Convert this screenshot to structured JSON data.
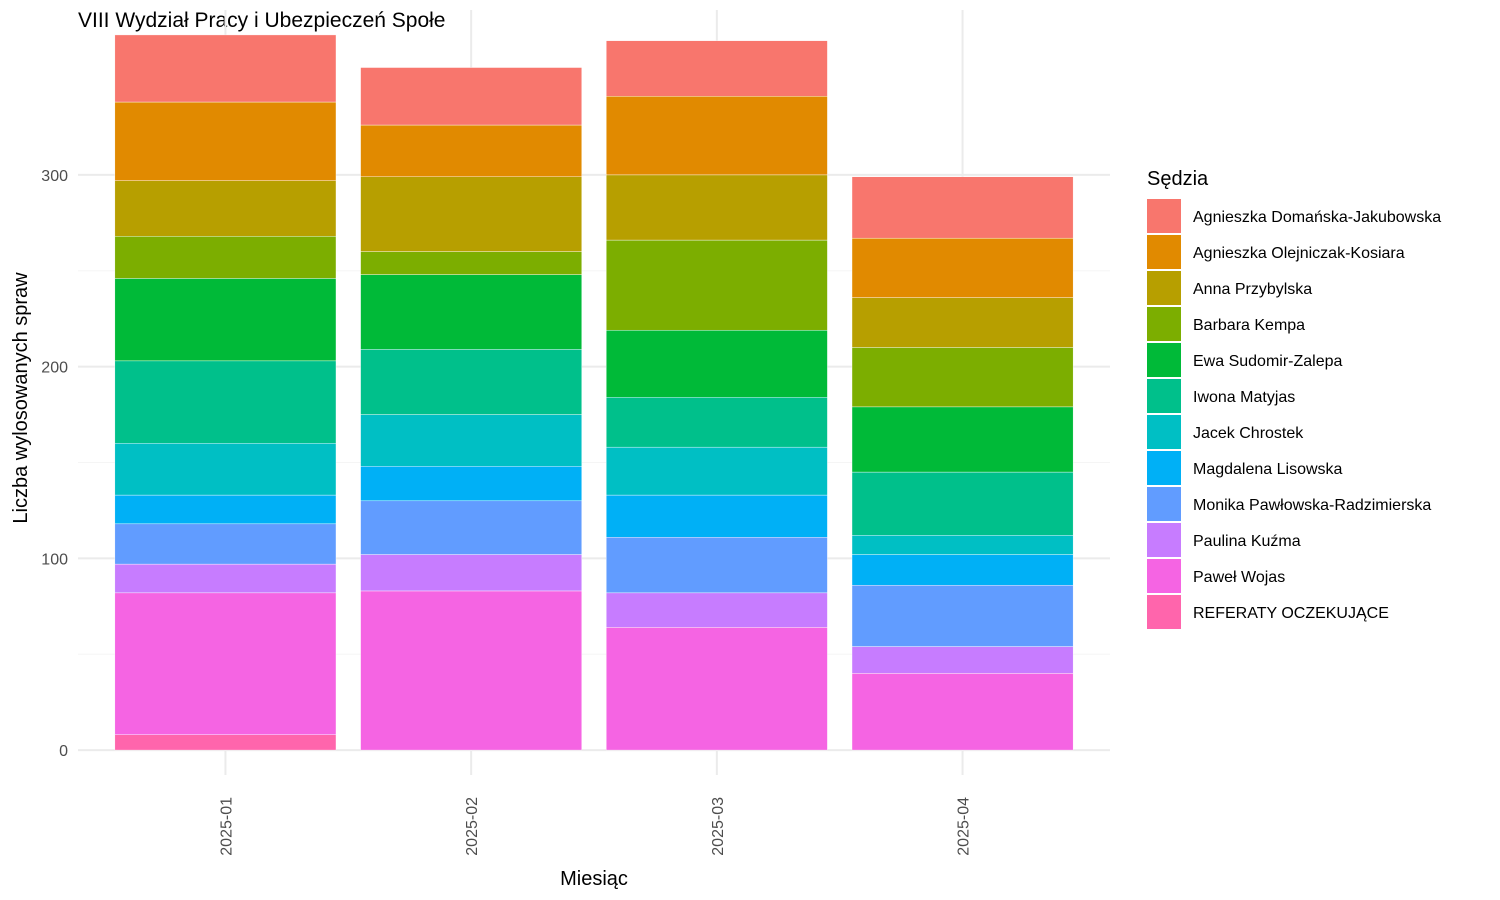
{
  "chart_data": {
    "type": "bar",
    "stacked": true,
    "title": "VIII Wydział Pracy i Ubezpieczeń Społe",
    "xlabel": "Miesiąc",
    "ylabel": "Liczba wylosowanych spraw",
    "ylim": [
      -13,
      386
    ],
    "yticks": [
      0,
      100,
      200,
      300
    ],
    "grid": true,
    "legend_title": "Sędzia",
    "legend_position": "right",
    "categories": [
      "2025-01",
      "2025-02",
      "2025-03",
      "2025-04"
    ],
    "series": [
      {
        "name": "REFERATY OCZEKUJĄCE",
        "color": "#FF65AC",
        "values": [
          8,
          0,
          0,
          0
        ]
      },
      {
        "name": "Paweł Wojas",
        "color": "#F564E3",
        "values": [
          74,
          83,
          64,
          40
        ]
      },
      {
        "name": "Paulina Kuźma",
        "color": "#C77CFF",
        "values": [
          15,
          19,
          18,
          14
        ]
      },
      {
        "name": "Monika Pawłowska-Radzimierska",
        "color": "#619CFF",
        "values": [
          21,
          28,
          29,
          32
        ]
      },
      {
        "name": "Magdalena Lisowska",
        "color": "#00B0F6",
        "values": [
          15,
          18,
          22,
          16
        ]
      },
      {
        "name": "Jacek Chrostek",
        "color": "#00BFC4",
        "values": [
          27,
          27,
          25,
          10
        ]
      },
      {
        "name": "Iwona Matyjas",
        "color": "#00C08B",
        "values": [
          43,
          34,
          26,
          33
        ]
      },
      {
        "name": "Ewa Sudomir-Zalepa",
        "color": "#00BA38",
        "values": [
          43,
          39,
          35,
          34
        ]
      },
      {
        "name": "Barbara Kempa",
        "color": "#7CAE00",
        "values": [
          22,
          12,
          47,
          31
        ]
      },
      {
        "name": "Anna Przybylska",
        "color": "#B79F00",
        "values": [
          29,
          39,
          34,
          26
        ]
      },
      {
        "name": "Agnieszka Olejniczak-Kosiara",
        "color": "#E18A00",
        "values": [
          41,
          27,
          41,
          31
        ]
      },
      {
        "name": "Agnieszka Domańska-Jakubowska",
        "color": "#F8766D",
        "values": [
          35,
          30,
          29,
          32
        ]
      }
    ]
  }
}
